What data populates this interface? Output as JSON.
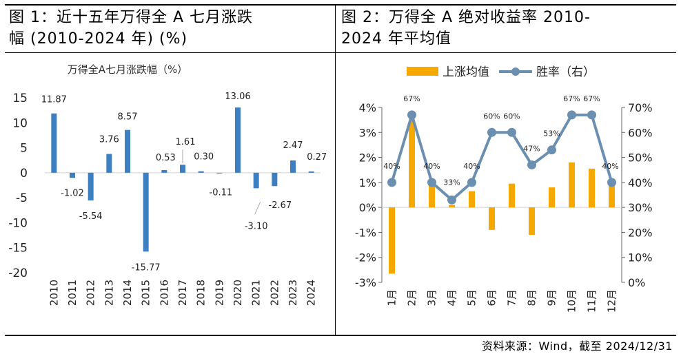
{
  "panels": {
    "left_title": "图 1：近十五年万得全 A 七月涨跌\n幅 (2010-2024 年) (%)",
    "right_title": "图 2：万得全 A 绝对收益率 2010-\n2024 年平均值"
  },
  "source": "资料来源：Wind，截至 2024/12/31",
  "colors": {
    "bar_blue": "#3d7fc1",
    "bar_orange": "#f5a800",
    "line_gray": "#6b8fb0"
  },
  "chart_data": [
    {
      "type": "bar",
      "title": "万得全A七月涨跌幅（%）",
      "categories": [
        "2010",
        "2011",
        "2012",
        "2013",
        "2014",
        "2015",
        "2016",
        "2017",
        "2018",
        "2019",
        "2020",
        "2021",
        "2022",
        "2023",
        "2024"
      ],
      "values": [
        11.87,
        -1.02,
        -5.54,
        3.76,
        8.57,
        -15.77,
        0.53,
        1.61,
        0.3,
        -0.11,
        13.06,
        -3.1,
        -2.67,
        2.47,
        0.27
      ],
      "data_labels": [
        "11.87",
        "-1.02",
        "-5.54",
        "3.76",
        "8.57",
        "-15.77",
        "0.53",
        "1.61",
        "0.30",
        "-0.11",
        "13.06",
        "-3.10",
        "-2.67",
        "2.47",
        "0.27"
      ],
      "y_ticks": [
        "15",
        "10",
        "5",
        "0",
        "-5",
        "-10",
        "-15",
        "-20"
      ],
      "ylim": [
        -20,
        15
      ],
      "grid": false
    },
    {
      "type": "bar",
      "categories": [
        "1月",
        "2月",
        "3月",
        "4月",
        "5月",
        "6月",
        "7月",
        "8月",
        "9月",
        "10月",
        "11月",
        "12月"
      ],
      "series": [
        {
          "name": "上涨均值",
          "type": "bar",
          "axis": "left",
          "values": [
            -2.65,
            3.5,
            0.9,
            0.1,
            0.65,
            -0.9,
            0.95,
            -1.1,
            0.8,
            1.8,
            1.55,
            0.9
          ]
        },
        {
          "name": "胜率（右）",
          "type": "line",
          "axis": "right",
          "values": [
            40,
            67,
            40,
            33,
            40,
            60,
            60,
            47,
            53,
            67,
            67,
            40
          ],
          "labels": [
            "40%",
            "67%",
            "40%",
            "33%",
            "40%",
            "60%",
            "60%",
            "47%",
            "53%",
            "67%",
            "67%",
            "40%"
          ]
        }
      ],
      "y_left_ticks": [
        "4%",
        "3%",
        "2%",
        "1%",
        "0%",
        "-1%",
        "-2%",
        "-3%"
      ],
      "y_left_lim": [
        -3,
        4
      ],
      "y_right_ticks": [
        "70%",
        "60%",
        "50%",
        "40%",
        "30%",
        "20%",
        "10%",
        "0%"
      ],
      "y_right_lim": [
        0,
        70
      ],
      "legend": "top",
      "grid": false
    }
  ]
}
